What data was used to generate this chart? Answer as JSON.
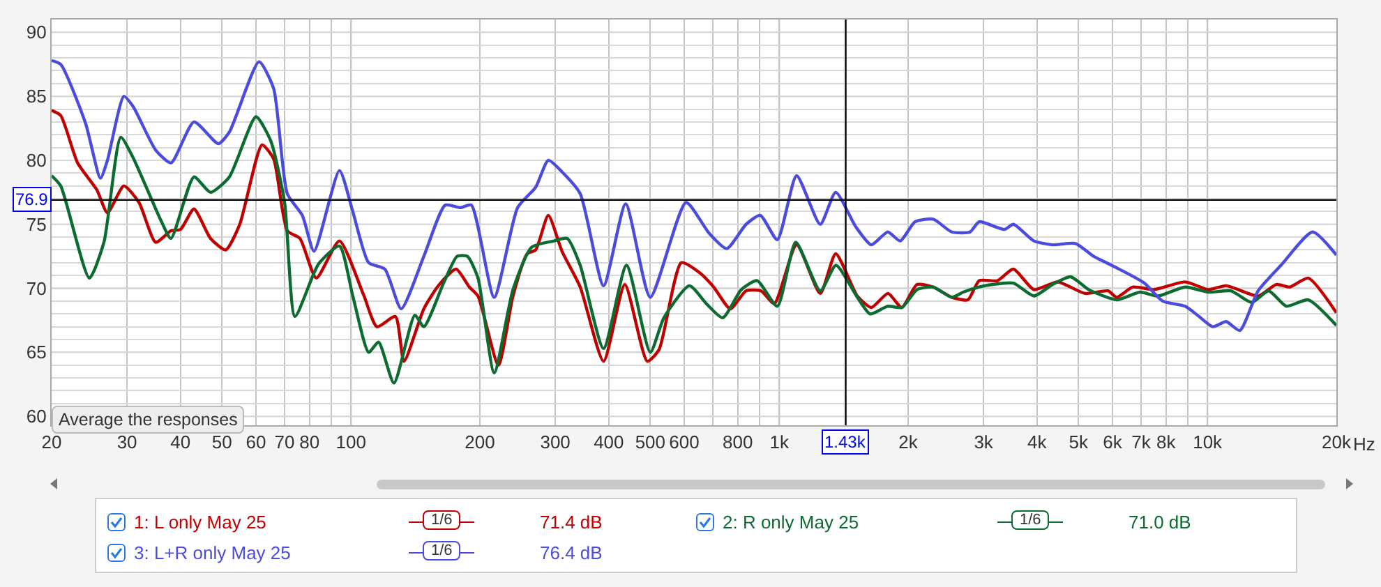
{
  "chart_data": {
    "type": "line",
    "xlim": [
      20,
      20000
    ],
    "xticks": [
      20,
      30,
      40,
      50,
      60,
      70,
      80,
      {
        "value": 90,
        "label": null
      },
      100,
      200,
      300,
      400,
      500,
      600,
      {
        "value": 700,
        "label": null
      },
      800,
      {
        "value": 900,
        "label": null
      },
      {
        "value": 1000,
        "label": "1k"
      },
      {
        "value": 2000,
        "label": "2k"
      },
      {
        "value": 3000,
        "label": "3k"
      },
      {
        "value": 4000,
        "label": "4k"
      },
      {
        "value": 5000,
        "label": "5k"
      },
      {
        "value": 6000,
        "label": "6k"
      },
      {
        "value": 7000,
        "label": "7k"
      },
      {
        "value": 8000,
        "label": "8k"
      },
      {
        "value": 9000,
        "label": null
      },
      {
        "value": 10000,
        "label": "10k"
      },
      {
        "value": 20000,
        "label": "20k"
      }
    ],
    "xlabel": "Hz",
    "ylim": [
      59.3,
      91
    ],
    "yticks": [
      60,
      {
        "value": 61,
        "label": null
      },
      {
        "value": 62,
        "label": null
      },
      {
        "value": 63,
        "label": null
      },
      {
        "value": 64,
        "label": null
      },
      65,
      {
        "value": 66,
        "label": null
      },
      {
        "value": 67,
        "label": null
      },
      {
        "value": 68,
        "label": null
      },
      {
        "value": 69,
        "label": null
      },
      70,
      {
        "value": 71,
        "label": null
      },
      {
        "value": 72,
        "label": null
      },
      {
        "value": 73,
        "label": null
      },
      {
        "value": 74,
        "label": null
      },
      75,
      {
        "value": 76,
        "label": null
      },
      {
        "value": 77,
        "label": null
      },
      {
        "value": 78,
        "label": null
      },
      {
        "value": 79,
        "label": null
      },
      80,
      {
        "value": 81,
        "label": null
      },
      {
        "value": 82,
        "label": null
      },
      {
        "value": 83,
        "label": null
      },
      {
        "value": 84,
        "label": null
      },
      85,
      {
        "value": 86,
        "label": null
      },
      {
        "value": 87,
        "label": null
      },
      {
        "value": 88,
        "label": null
      },
      {
        "value": 89,
        "label": null
      },
      90
    ],
    "grid": true,
    "legend": "bottom",
    "series": [
      {
        "name": "1: L only May 25",
        "color": "#c00000",
        "x": [
          20,
          21,
          23,
          25.5,
          27,
          29.5,
          32,
          35,
          38,
          40,
          43,
          47,
          51,
          55,
          62,
          66,
          71,
          76,
          83,
          94,
          107,
          115,
          127,
          133,
          148,
          160,
          176,
          189,
          198,
          221,
          239,
          258,
          270,
          289,
          311,
          343,
          389,
          436,
          492,
          524,
          591,
          653,
          703,
          769,
          837,
          907,
          974,
          1098,
          1247,
          1355,
          1522,
          1641,
          1795,
          1933,
          2099,
          2289,
          2529,
          2758,
          2931,
          3235,
          3523,
          3935,
          4466,
          5180,
          5860,
          6140,
          6700,
          7490,
          8870,
          10050,
          11060,
          13130,
          14480,
          15570,
          17200,
          20000
        ],
        "values": [
          83.9,
          83.5,
          79.8,
          77.7,
          75.9,
          78,
          76.7,
          73.6,
          74.5,
          74.6,
          76.2,
          73.9,
          73,
          75,
          81.2,
          80.1,
          74.5,
          73.9,
          70.8,
          73.7,
          69.5,
          67,
          67.8,
          64.3,
          68.4,
          70.2,
          71.5,
          70.1,
          69.4,
          64,
          69.4,
          72.7,
          73,
          75.7,
          72.9,
          70.1,
          64.3,
          70.3,
          64.3,
          65.2,
          72,
          71.2,
          70.1,
          68.4,
          69.8,
          69.8,
          68.8,
          73.4,
          69.6,
          72.7,
          69.4,
          68.5,
          69.6,
          68.5,
          70.3,
          70.1,
          69.3,
          69.1,
          70.6,
          70.6,
          71.5,
          69.9,
          70.5,
          69.6,
          69.8,
          69.3,
          70.1,
          69.9,
          70.5,
          69.9,
          70.2,
          69.4,
          70.3,
          70.1,
          70.8,
          68.1
        ]
      },
      {
        "name": "2: R only May 25",
        "color": "#0b6b30",
        "x": [
          20,
          21,
          24.5,
          26.5,
          29,
          31,
          36,
          38,
          43,
          47,
          52,
          60,
          65,
          70,
          74,
          84,
          94,
          101,
          110,
          116,
          126,
          141,
          148,
          165,
          177,
          187,
          198,
          216,
          239,
          264,
          298,
          320,
          343,
          389,
          440,
          500,
          538,
          617,
          676,
          738,
          816,
          888,
          990,
          1093,
          1247,
          1357,
          1522,
          1630,
          1793,
          1933,
          2099,
          2289,
          2529,
          2690,
          2931,
          3150,
          3523,
          3935,
          4350,
          4790,
          5280,
          6140,
          6960,
          7660,
          8870,
          10050,
          11340,
          12700,
          13900,
          15280,
          17200,
          20000
        ],
        "values": [
          78.8,
          78,
          70.8,
          73.6,
          81.8,
          80.2,
          75.3,
          73.9,
          78.7,
          77.5,
          78.7,
          83.4,
          81.5,
          76.7,
          67.8,
          71.9,
          73.3,
          69.4,
          65,
          65.8,
          62.6,
          67.9,
          67,
          70.5,
          72.5,
          72.5,
          70.8,
          63.4,
          69.9,
          73.2,
          73.7,
          73.9,
          71.8,
          65.3,
          71.8,
          65,
          67.7,
          70.2,
          68.8,
          67.7,
          69.9,
          70.6,
          68.6,
          73.6,
          69.8,
          71.8,
          69.3,
          68,
          68.6,
          68.5,
          69.9,
          70.1,
          69.3,
          69.7,
          70.1,
          70.3,
          70.4,
          69.4,
          70.3,
          70.9,
          69.9,
          69.1,
          69.7,
          69.4,
          70.1,
          69.7,
          69.8,
          68.9,
          69.8,
          68.6,
          69.1,
          67.1
        ]
      },
      {
        "name": "3: L+R only May 25",
        "color": "#4c4cdc",
        "x": [
          20,
          21,
          24,
          26,
          27,
          29.5,
          31,
          35,
          38,
          43,
          49,
          52,
          61,
          66,
          71,
          77,
          82,
          94,
          101,
          110,
          120,
          131,
          148,
          166,
          180,
          191,
          216,
          245,
          270,
          289,
          311,
          343,
          389,
          438,
          500,
          606,
          686,
          754,
          837,
          903,
          990,
          1098,
          1247,
          1355,
          1510,
          1641,
          1793,
          1917,
          2076,
          2289,
          2529,
          2790,
          2931,
          3355,
          3523,
          3935,
          4350,
          4920,
          5425,
          6140,
          7130,
          7860,
          8870,
          9560,
          10290,
          11060,
          11900,
          13130,
          14850,
          17600,
          20000
        ],
        "values": [
          87.8,
          87.5,
          82.9,
          78.6,
          80,
          85,
          84.2,
          80.8,
          79.8,
          83,
          81.3,
          82.2,
          87.7,
          85.6,
          77.4,
          75.7,
          72.9,
          79.2,
          76,
          72,
          71.5,
          68.4,
          72.5,
          76.5,
          76.3,
          76.5,
          69.3,
          76.3,
          77.9,
          80,
          79.1,
          77.4,
          70.2,
          76.6,
          69.3,
          76.7,
          74.3,
          73.1,
          75,
          75.7,
          73.8,
          78.8,
          75,
          77.5,
          74.8,
          73.4,
          74.4,
          73.7,
          75.2,
          75.4,
          74.4,
          74.4,
          75.2,
          74.6,
          75,
          73.7,
          73.4,
          73.5,
          72.5,
          71.6,
          70.4,
          69,
          68.6,
          67.8,
          67,
          67.4,
          66.7,
          69.8,
          71.8,
          74.4,
          72.6
        ]
      }
    ],
    "ref_lines": [
      {
        "axis": "y",
        "value": 76.9,
        "label": "76.9",
        "color": "#000000"
      },
      {
        "axis": "x",
        "value": 1430,
        "label": "1.43k",
        "color": "#000000"
      }
    ],
    "annotations": [
      "Average the responses",
      "1/6",
      "71.4 dB",
      "1/6",
      "71.0 dB",
      "1/6",
      "76.4 dB"
    ],
    "log": "x"
  }
}
